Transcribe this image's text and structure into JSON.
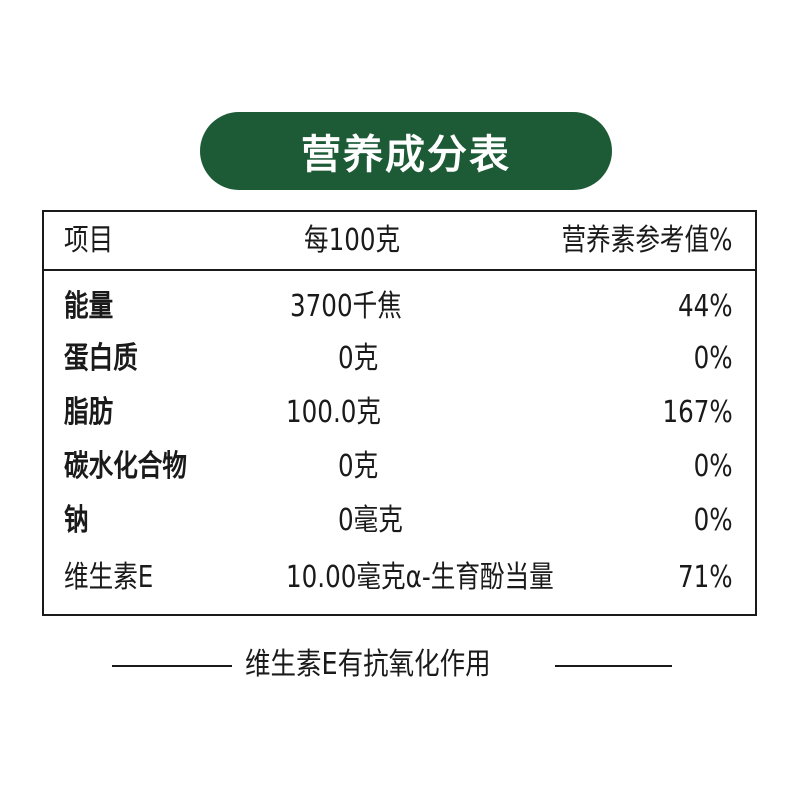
{
  "title": "营养成分表",
  "brand_color": "#1d5a36",
  "header": {
    "item": "项目",
    "per": "每100克",
    "nrv": "营养素参考值%"
  },
  "rows": [
    {
      "name": "能量",
      "value": "3700千焦",
      "nrv": "44%",
      "bold": true
    },
    {
      "name": "蛋白质",
      "value": "0克",
      "nrv": "0%",
      "bold": true
    },
    {
      "name": "脂肪",
      "value": "100.0克",
      "nrv": "167%",
      "bold": true
    },
    {
      "name": "碳水化合物",
      "value": "0克",
      "nrv": "0%",
      "bold": true
    },
    {
      "name": "钠",
      "value": "0毫克",
      "nrv": "0%",
      "bold": true
    },
    {
      "name": "维生素E",
      "value": "10.00毫克α-生育酚当量",
      "nrv": "71%",
      "bold": false
    }
  ],
  "footer": "维生素E有抗氧化作用"
}
